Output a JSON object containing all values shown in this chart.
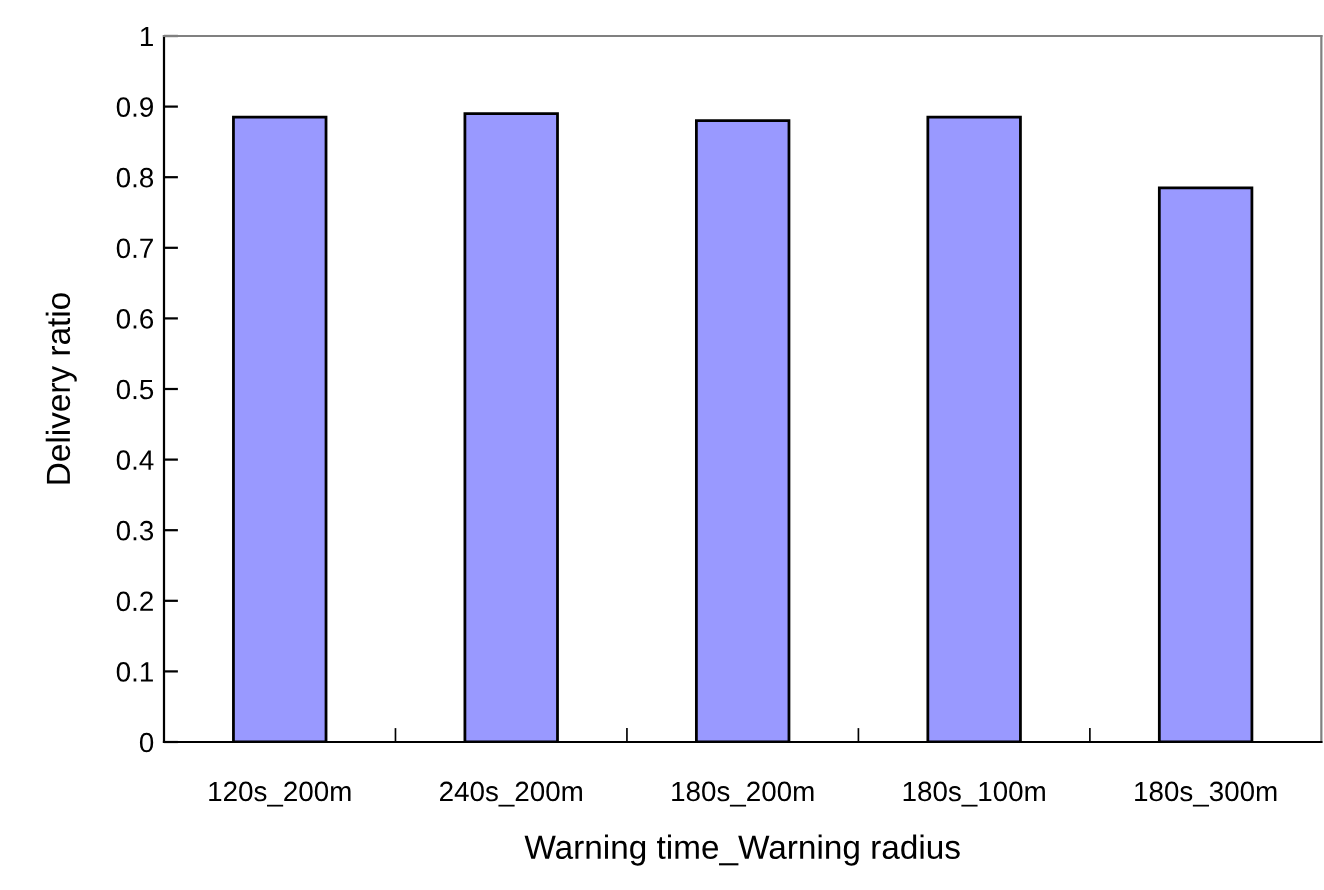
{
  "chart_data": {
    "type": "bar",
    "xlabel": "Warning time_Warning radius",
    "ylabel": "Delivery ratio",
    "categories": [
      "120s_200m",
      "240s_200m",
      "180s_200m",
      "180s_100m",
      "180s_300m"
    ],
    "values": [
      0.885,
      0.89,
      0.88,
      0.885,
      0.785
    ],
    "color": "#9999ff",
    "ylim": [
      0,
      1
    ],
    "yticks": [
      0,
      0.1,
      0.2,
      0.3,
      0.4,
      0.5,
      0.6,
      0.7,
      0.8,
      0.9,
      1
    ],
    "grid": false
  }
}
